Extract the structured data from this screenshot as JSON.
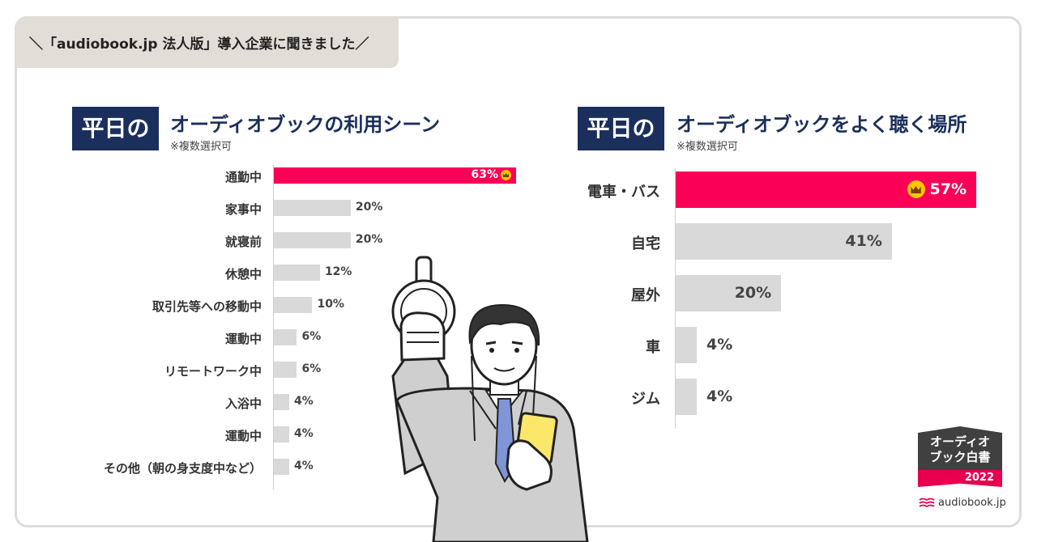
{
  "header": {
    "text": "＼「audiobook.jp 法人版」導入企業に聞きました／"
  },
  "colors": {
    "accent": "#fb0057",
    "bar": "#d9d9d9",
    "navy": "#1b2f5c"
  },
  "chart_data": [
    {
      "type": "bar",
      "orientation": "horizontal",
      "badge": "平日の",
      "title": "オーディオブックの利用シーン",
      "note": "※複数選択可",
      "categories": [
        "通勤中",
        "家事中",
        "就寝前",
        "休憩中",
        "取引先等への移動中",
        "運動中",
        "リモートワーク中",
        "入浴中",
        "運動中",
        "その他（朝の身支度中など）"
      ],
      "values": [
        63,
        20,
        20,
        12,
        10,
        6,
        6,
        4,
        4,
        4
      ],
      "value_labels": [
        "63%",
        "20%",
        "20%",
        "12%",
        "10%",
        "6%",
        "6%",
        "4%",
        "4%",
        "4%"
      ],
      "highlight_index": 0,
      "xlim": [
        0,
        63
      ]
    },
    {
      "type": "bar",
      "orientation": "horizontal",
      "badge": "平日の",
      "title": "オーディオブックをよく聴く場所",
      "note": "※複数選択可",
      "categories": [
        "電車・バス",
        "自宅",
        "屋外",
        "車",
        "ジム"
      ],
      "values": [
        57,
        41,
        20,
        4,
        4
      ],
      "value_labels": [
        "57%",
        "41%",
        "20%",
        "4%",
        "4%"
      ],
      "highlight_index": 0,
      "xlim": [
        0,
        57
      ]
    }
  ],
  "logo": {
    "line1": "オーディオ",
    "line2": "ブック白書",
    "year": "2022",
    "brand": "audiobook.jp"
  },
  "icons": {
    "crown": "crown-icon",
    "brand": "audiobook-logo-icon"
  }
}
